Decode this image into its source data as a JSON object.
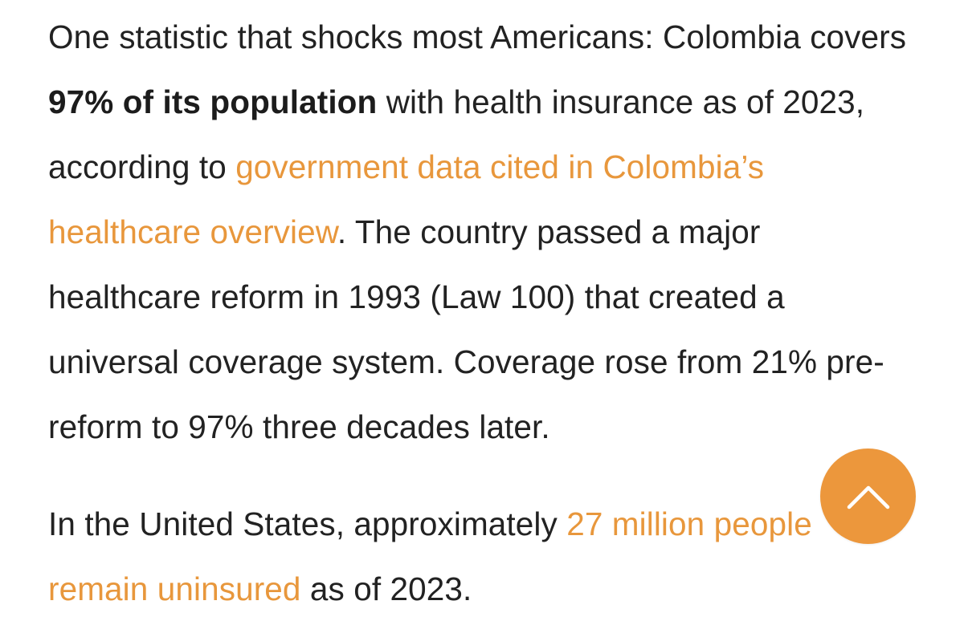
{
  "article": {
    "paragraph1": {
      "t1": "One statistic that shocks most Americans: Colombia covers ",
      "bold": "97% of its population",
      "t2": " with health insurance as of 2023, according to ",
      "link": "government data cited in Colombia’s healthcare overview",
      "t3": ". The country passed a major healthcare reform in 1993 (Law 100) that created a universal coverage system. Coverage rose from 21% pre-reform to 97% three decades later."
    },
    "paragraph2": {
      "t1": "In the United States, approximately ",
      "link": "27 million people remain uninsured",
      "t2": " as of 2023."
    }
  },
  "scroll_to_top": {
    "icon": "chevron-up-icon",
    "color": "#ec9436"
  },
  "colors": {
    "link": "#e8973c",
    "text": "#222222",
    "background": "#ffffff"
  }
}
